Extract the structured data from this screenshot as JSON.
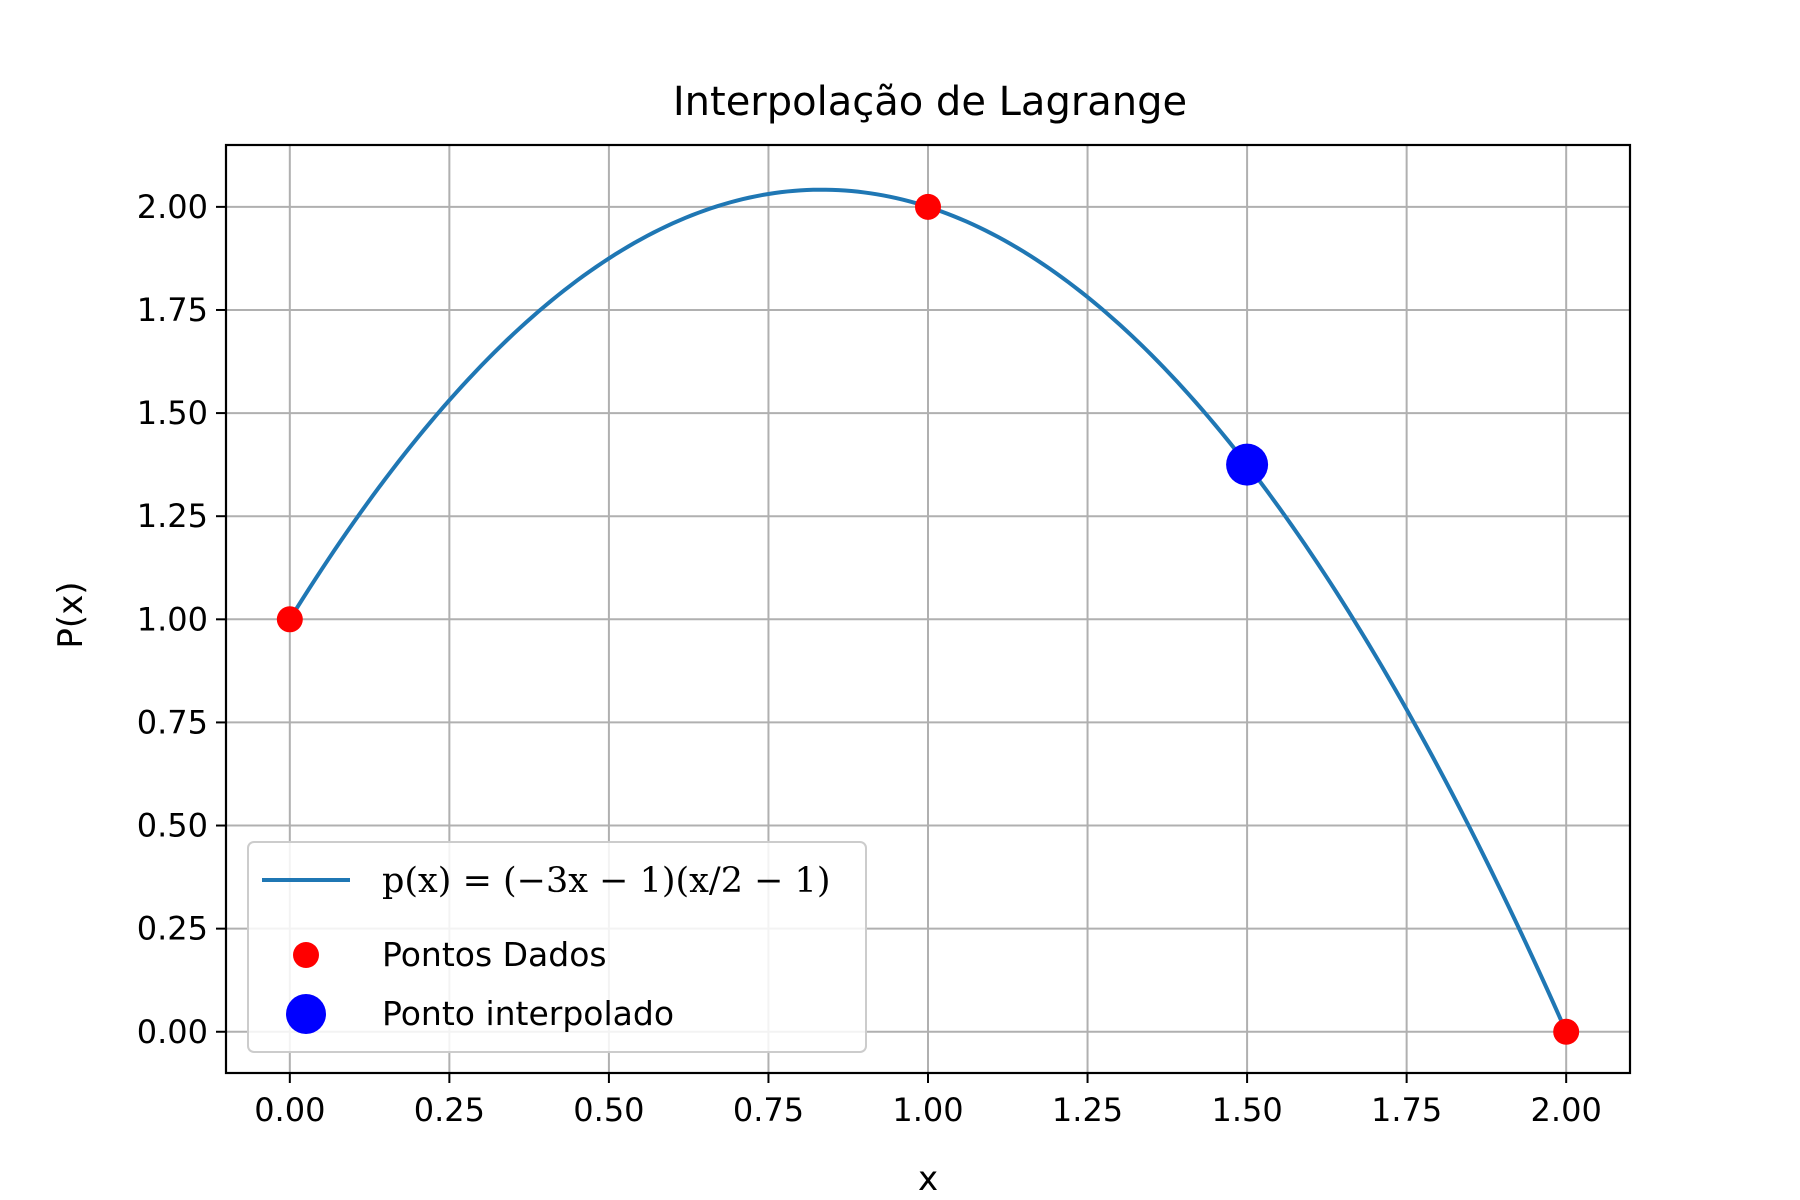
{
  "chart_data": {
    "type": "line",
    "title": "Interpolação de Lagrange",
    "xlabel": "x",
    "ylabel": "P(x)",
    "xlim": [
      -0.1,
      2.1
    ],
    "ylim": [
      -0.1,
      2.15
    ],
    "x_ticks": [
      "0.00",
      "0.25",
      "0.50",
      "0.75",
      "1.00",
      "1.25",
      "1.50",
      "1.75",
      "2.00"
    ],
    "y_ticks": [
      "0.00",
      "0.25",
      "0.50",
      "0.75",
      "1.00",
      "1.25",
      "1.50",
      "1.75",
      "2.00"
    ],
    "grid": true,
    "legend_position": "lower-left",
    "series": [
      {
        "name": "p(x) = (−3x − 1)(x/2 − 1)",
        "kind": "line",
        "color": "#1f77b4",
        "function": "(-3x-1)(x/2-1)",
        "domain": [
          0,
          2
        ]
      },
      {
        "name": "Pontos Dados",
        "kind": "scatter",
        "color": "#ff0000",
        "x": [
          0,
          1,
          2
        ],
        "y": [
          1,
          2,
          0
        ]
      },
      {
        "name": "Ponto interpolado",
        "kind": "scatter",
        "color": "#0000ff",
        "x": [
          1.5
        ],
        "y": [
          1.375
        ]
      }
    ]
  }
}
